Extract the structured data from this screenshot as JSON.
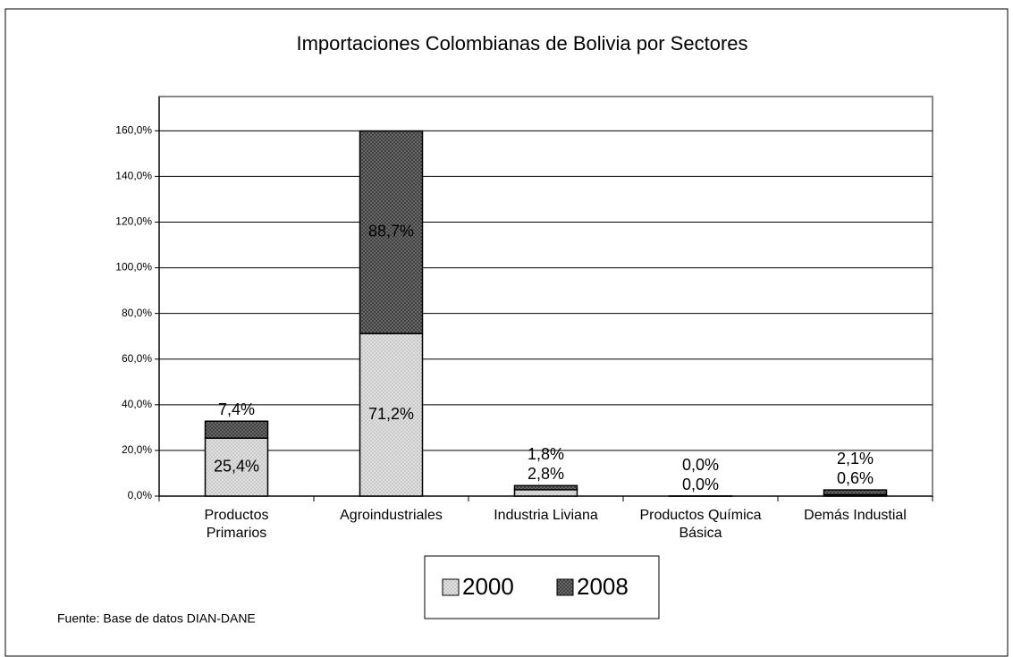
{
  "chart_data": {
    "type": "bar",
    "stacked": true,
    "title": "Importaciones Colombianas de Bolivia por Sectores",
    "source": "Fuente: Base de datos DIAN-DANE",
    "categories": [
      "Productos Primarios",
      "Agroindustriales",
      "Industria Liviana",
      "Productos Química Básica",
      "Demás Industial"
    ],
    "series": [
      {
        "name": "2000",
        "color": "#c8c8c8",
        "values": [
          25.4,
          71.2,
          2.8,
          0.0,
          0.6
        ],
        "value_labels": [
          "25,4%",
          "71,2%",
          "2,8%",
          "0,0%",
          "0,6%"
        ]
      },
      {
        "name": "2008",
        "color": "#404040",
        "values": [
          7.4,
          88.7,
          1.8,
          0.0,
          2.1
        ],
        "value_labels": [
          "7,4%",
          "88,7%",
          "1,8%",
          "0,0%",
          "2,1%"
        ]
      }
    ],
    "ylim": [
      0,
      175
    ],
    "yticks": [
      {
        "value": 0,
        "label": "0,0%"
      },
      {
        "value": 20,
        "label": "20,0%"
      },
      {
        "value": 40,
        "label": "40,0%"
      },
      {
        "value": 60,
        "label": "60,0%"
      },
      {
        "value": 80,
        "label": "80,0%"
      },
      {
        "value": 100,
        "label": "100,0%"
      },
      {
        "value": 120,
        "label": "120,0%"
      },
      {
        "value": 140,
        "label": "140,0%"
      },
      {
        "value": 160,
        "label": "160,0%"
      }
    ],
    "grid": true,
    "legend": "bottom"
  }
}
